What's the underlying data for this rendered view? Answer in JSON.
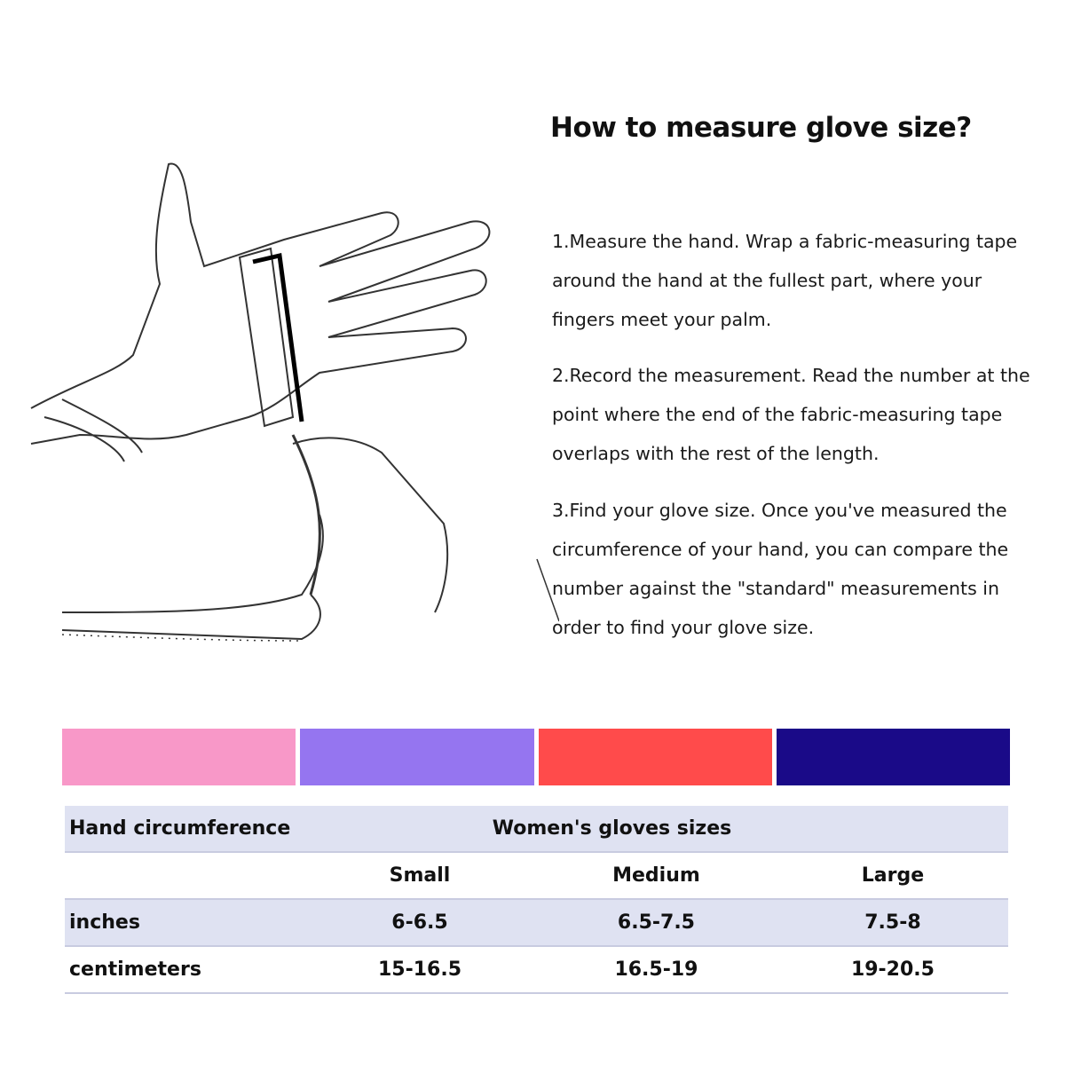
{
  "title": "How to measure glove size?",
  "steps": [
    "1.Measure the hand. Wrap a fabric-measuring tape around the hand at the fullest part, where your fingers meet your palm.",
    "2.Record the measurement. Read the number at the point where the end of the fabric-measuring tape overlaps with the rest of the length.",
    "3.Find your glove size. Once you've measured the circumference of your hand, you can compare the number against the \"standard\" measurements in order to find your glove size."
  ],
  "swatch_colors": [
    "#f898c8",
    "#9575f0",
    "#ff4b4b",
    "#1a0a88"
  ],
  "table": {
    "header_left": "Hand circumference",
    "header_right": "Women's gloves sizes",
    "sizes": [
      "Small",
      "Medium",
      "Large"
    ],
    "rows": [
      {
        "label": "inches",
        "values": [
          "6-6.5",
          "6.5-7.5",
          "7.5-8"
        ]
      },
      {
        "label": "centimeters",
        "values": [
          "15-16.5",
          "16.5-19",
          "19-20.5"
        ]
      }
    ]
  }
}
